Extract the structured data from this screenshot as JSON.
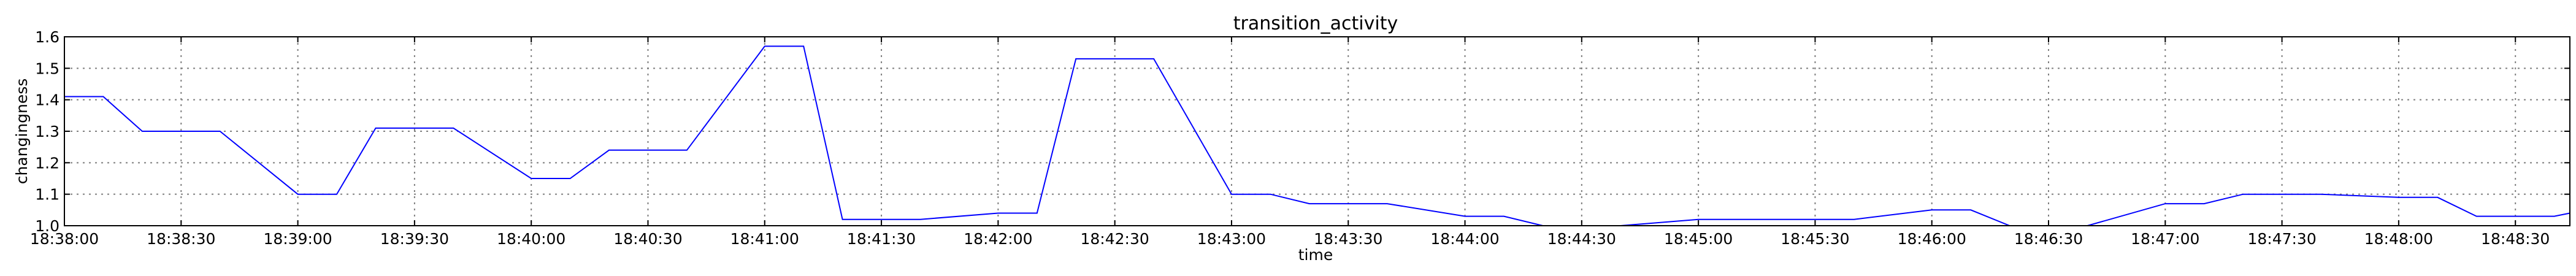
{
  "chart_data": {
    "type": "line",
    "title": "transition_activity",
    "xlabel": "time",
    "ylabel": "changingness",
    "grid": true,
    "line_color": "#0000ff",
    "xlim": [
      "18:38:00",
      "18:48:44"
    ],
    "ylim": [
      1.0,
      1.6
    ],
    "xticks": [
      "18:38:00",
      "18:38:30",
      "18:39:00",
      "18:39:30",
      "18:40:00",
      "18:40:30",
      "18:41:00",
      "18:41:30",
      "18:42:00",
      "18:42:30",
      "18:43:00",
      "18:43:30",
      "18:44:00",
      "18:44:30",
      "18:45:00",
      "18:45:30",
      "18:46:00",
      "18:46:30",
      "18:47:00",
      "18:47:30",
      "18:48:00",
      "18:48:30"
    ],
    "yticks": [
      "1.0",
      "1.1",
      "1.2",
      "1.3",
      "1.4",
      "1.5",
      "1.6"
    ],
    "series": [
      {
        "x": [
          "18:38:00",
          "18:38:10",
          "18:38:20",
          "18:38:40",
          "18:39:00",
          "18:39:10",
          "18:39:20",
          "18:39:40",
          "18:40:00",
          "18:40:10",
          "18:40:20",
          "18:40:40",
          "18:41:00",
          "18:41:10",
          "18:41:20",
          "18:41:40",
          "18:42:00",
          "18:42:10",
          "18:42:20",
          "18:42:40",
          "18:43:00",
          "18:43:10",
          "18:43:20",
          "18:43:40",
          "18:44:00",
          "18:44:10",
          "18:44:20",
          "18:44:40",
          "18:45:00",
          "18:45:10",
          "18:45:20",
          "18:45:40",
          "18:46:00",
          "18:46:10",
          "18:46:20",
          "18:46:40",
          "18:47:00",
          "18:47:10",
          "18:47:20",
          "18:47:40",
          "18:48:00",
          "18:48:10",
          "18:48:20",
          "18:48:40",
          "18:48:44"
        ],
        "y": [
          1.41,
          1.41,
          1.3,
          1.3,
          1.1,
          1.1,
          1.31,
          1.31,
          1.15,
          1.15,
          1.24,
          1.24,
          1.57,
          1.57,
          1.02,
          1.02,
          1.04,
          1.04,
          1.53,
          1.53,
          1.1,
          1.1,
          1.07,
          1.07,
          1.03,
          1.03,
          1.0,
          1.0,
          1.02,
          1.02,
          1.02,
          1.02,
          1.05,
          1.05,
          1.0,
          1.0,
          1.07,
          1.07,
          1.1,
          1.1,
          1.09,
          1.09,
          1.03,
          1.03,
          1.04
        ]
      }
    ]
  }
}
